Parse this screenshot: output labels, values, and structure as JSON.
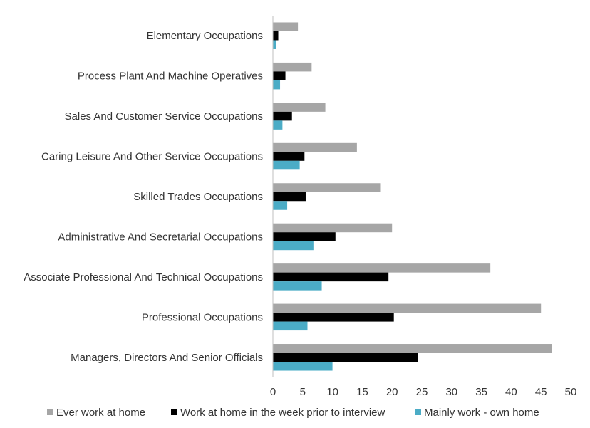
{
  "chart_data": {
    "type": "bar",
    "orientation": "horizontal",
    "categories": [
      "Elementary Occupations",
      "Process Plant And Machine Operatives",
      "Sales And Customer Service Occupations",
      "Caring Leisure And Other Service Occupations",
      "Skilled Trades Occupations",
      "Administrative And Secretarial Occupations",
      "Associate Professional And Technical Occupations",
      "Professional Occupations",
      "Managers, Directors And Senior Officials"
    ],
    "series": [
      {
        "name": "Ever work at home",
        "color": "#a6a6a6",
        "values": [
          4.2,
          6.5,
          8.8,
          14.1,
          18.0,
          20.0,
          36.5,
          45.0,
          46.8
        ]
      },
      {
        "name": "Work at home in the week prior to interview",
        "color": "#000000",
        "values": [
          0.9,
          2.1,
          3.2,
          5.3,
          5.5,
          10.5,
          19.4,
          20.3,
          24.4
        ]
      },
      {
        "name": "Mainly work - own home",
        "color": "#4bacc6",
        "values": [
          0.5,
          1.2,
          1.6,
          4.5,
          2.4,
          6.8,
          8.2,
          5.8,
          10.0
        ]
      }
    ],
    "xlim": [
      0,
      50
    ],
    "xticks": [
      "0",
      "5",
      "10",
      "15",
      "20",
      "25",
      "30",
      "35",
      "40",
      "45",
      "50"
    ],
    "grid": false,
    "legend_position": "bottom",
    "title": "",
    "xlabel": "",
    "ylabel": ""
  }
}
